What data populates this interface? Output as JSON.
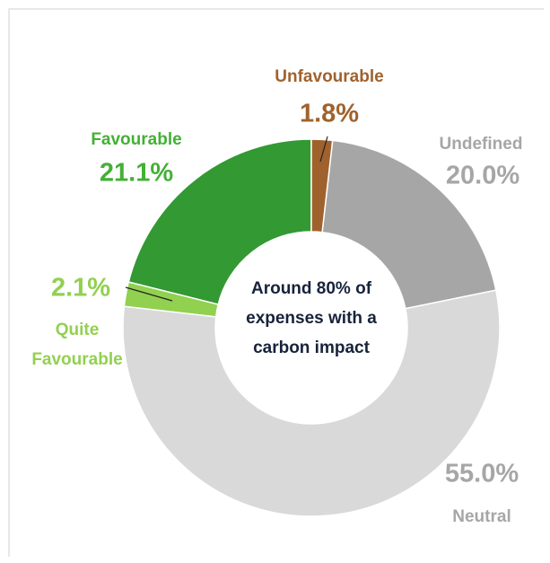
{
  "chart_data": {
    "type": "donut",
    "categories": [
      "Unfavourable",
      "Undefined",
      "Neutral",
      "Quite Favourable",
      "Favourable"
    ],
    "values": [
      1.8,
      20.0,
      55.0,
      2.1,
      21.1
    ],
    "value_labels": [
      "1.8%",
      "20.0%",
      "55.0%",
      "2.1%",
      "21.1%"
    ],
    "colors": [
      "#a0622d",
      "#a6a6a6",
      "#d9d9d9",
      "#92d050",
      "#339933"
    ],
    "label_colors": [
      "#a0622d",
      "#a6a6a6",
      "#a6a6a6",
      "#92d050",
      "#44b035"
    ],
    "center_text": [
      "Around 80% of",
      "expenses with a",
      "carbon impact"
    ]
  }
}
